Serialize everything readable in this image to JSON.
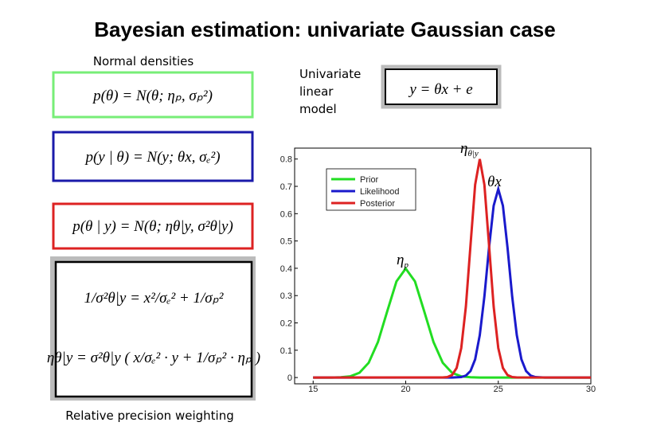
{
  "title": "Bayesian estimation: univariate Gaussian case",
  "left_caption": "Normal densities",
  "equations": {
    "prior": "p(θ) = N(θ; ηₚ, σₚ²)",
    "likelihood": "p(y | θ) = N(y; θx, σₑ²)",
    "posterior": "p(θ | y) = N(θ; ηθ|y, σ²θ|y)",
    "precision": "1/σ²θ|y = x²/σₑ² + 1/σₚ²",
    "mean": "ηθ|y = σ²θ|y ( x/σₑ² · y + 1/σₚ² · ηₚ )"
  },
  "bottom_caption": "Relative precision weighting",
  "model_caption": [
    "Univariate",
    "linear",
    "model"
  ],
  "model_equation": "y = θx + e",
  "chart_data": {
    "type": "line",
    "xlim": [
      14,
      30
    ],
    "ylim": [
      -0.023,
      0.84
    ],
    "xticks": [
      15,
      20,
      25,
      30
    ],
    "yticks": [
      0,
      0.1,
      0.2,
      0.3,
      0.4,
      0.5,
      0.6,
      0.7,
      0.8
    ],
    "legend": "upper-left",
    "series": [
      {
        "name": "Prior",
        "color": "#22dd22",
        "x": [
          15,
          16,
          16.5,
          17,
          17.5,
          18,
          18.5,
          19,
          19.5,
          20,
          20.5,
          21,
          21.5,
          22,
          22.5,
          23,
          23.5,
          24,
          30
        ],
        "values": [
          0,
          0.0001,
          0.0009,
          0.0044,
          0.0175,
          0.054,
          0.13,
          0.242,
          0.352,
          0.399,
          0.352,
          0.242,
          0.13,
          0.054,
          0.0175,
          0.0044,
          0.0009,
          0.0001,
          0
        ]
      },
      {
        "name": "Likelihood",
        "color": "#1a1acc",
        "x": [
          15,
          22.5,
          23,
          23.25,
          23.5,
          23.75,
          24,
          24.25,
          24.5,
          24.75,
          25,
          25.25,
          25.5,
          25.75,
          26,
          26.25,
          26.5,
          26.75,
          27,
          27.5,
          30
        ],
        "values": [
          0,
          0,
          0.0017,
          0.007,
          0.0238,
          0.0665,
          0.155,
          0.297,
          0.475,
          0.629,
          0.69,
          0.629,
          0.475,
          0.297,
          0.155,
          0.0665,
          0.0238,
          0.007,
          0.0017,
          0,
          0
        ]
      },
      {
        "name": "Posterior",
        "color": "#dd2222",
        "x": [
          15,
          22,
          22.25,
          22.5,
          22.75,
          23,
          23.25,
          23.5,
          23.75,
          24,
          24.25,
          24.5,
          24.75,
          25,
          25.25,
          25.5,
          25.75,
          26,
          30
        ],
        "values": [
          0,
          0.0003,
          0.0017,
          0.0089,
          0.035,
          0.108,
          0.26,
          0.485,
          0.706,
          0.8,
          0.706,
          0.485,
          0.26,
          0.108,
          0.035,
          0.0089,
          0.0017,
          0.0003,
          0
        ]
      }
    ],
    "annotations": [
      {
        "text": "η",
        "sub": "θ|y"
      },
      {
        "text": "θx"
      },
      {
        "text": "η",
        "sub": "p"
      }
    ]
  }
}
